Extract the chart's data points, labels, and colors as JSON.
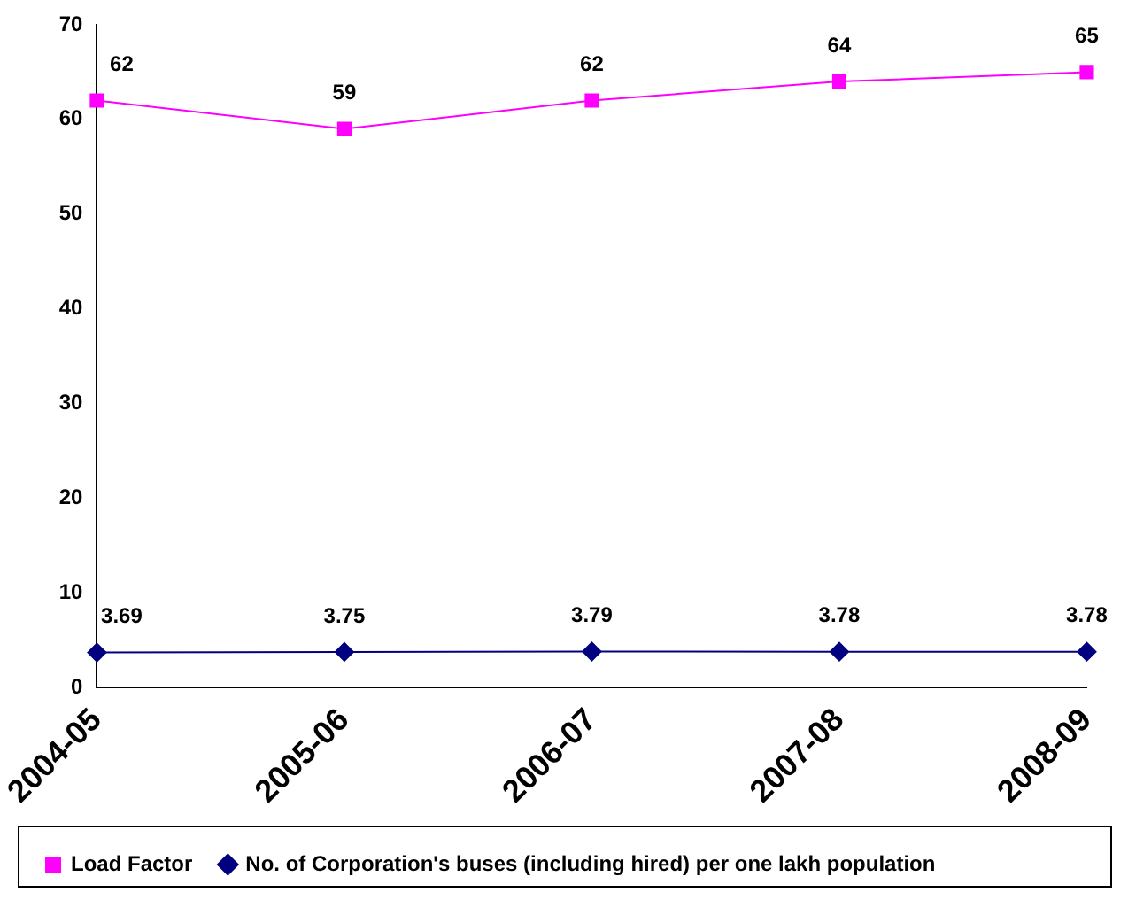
{
  "chart_data": {
    "type": "line",
    "categories": [
      "2004-05",
      "2005-06",
      "2006-07",
      "2007-08",
      "2008-09"
    ],
    "series": [
      {
        "name": "Load Factor",
        "color": "#ff00ff",
        "marker": "square",
        "values": [
          62,
          59,
          62,
          64,
          65
        ]
      },
      {
        "name": "No. of Corporation's buses (including hired) per one lakh population",
        "color": "#000080",
        "marker": "diamond",
        "values": [
          3.69,
          3.75,
          3.79,
          3.78,
          3.78
        ]
      }
    ],
    "ylim": [
      0,
      70
    ],
    "yticks": [
      0,
      10,
      20,
      30,
      40,
      50,
      60,
      70
    ],
    "grid": false,
    "legend": "bottom",
    "data_labels": true
  }
}
